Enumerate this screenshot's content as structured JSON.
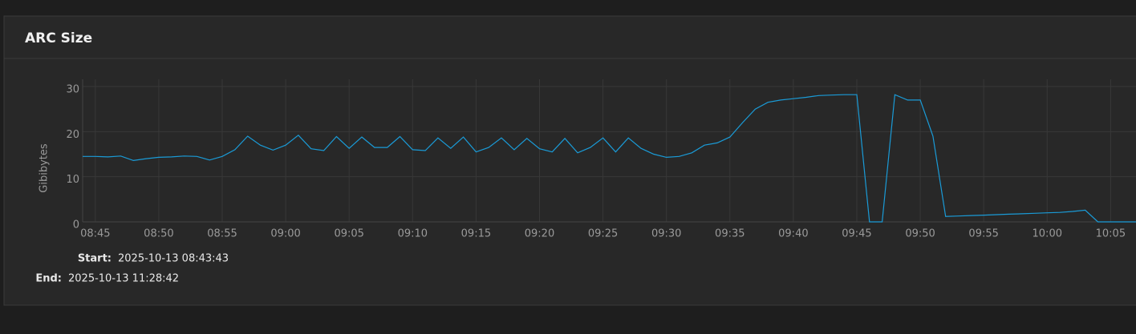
{
  "panel": {
    "title": "ARC Size",
    "start_label": "Start:",
    "start": "2025-10-13 08:43:43",
    "end_label": "End:",
    "end": "2025-10-13 11:28:42"
  },
  "chart_data": {
    "type": "line",
    "y_label": "Gibibytes",
    "color": "#1a9bd7",
    "grid": true,
    "x": [
      "08:44",
      "08:45",
      "08:46",
      "08:47",
      "08:48",
      "08:49",
      "08:50",
      "08:51",
      "08:52",
      "08:53",
      "08:54",
      "08:55",
      "08:56",
      "08:57",
      "08:58",
      "08:59",
      "09:00",
      "09:01",
      "09:02",
      "09:03",
      "09:04",
      "09:05",
      "09:06",
      "09:07",
      "09:08",
      "09:09",
      "09:10",
      "09:11",
      "09:12",
      "09:13",
      "09:14",
      "09:15",
      "09:16",
      "09:17",
      "09:18",
      "09:19",
      "09:20",
      "09:21",
      "09:22",
      "09:23",
      "09:24",
      "09:25",
      "09:26",
      "09:27",
      "09:28",
      "09:29",
      "09:30",
      "09:31",
      "09:32",
      "09:33",
      "09:34",
      "09:35",
      "09:36",
      "09:37",
      "09:38",
      "09:39",
      "09:40",
      "09:41",
      "09:42",
      "09:43",
      "09:44",
      "09:45",
      "09:46",
      "09:47",
      "09:48",
      "09:49",
      "09:50",
      "09:51",
      "09:52",
      "09:53",
      "09:54",
      "09:55",
      "09:56",
      "09:57",
      "09:58",
      "09:59",
      "10:00",
      "10:01",
      "10:02",
      "10:03",
      "10:04",
      "10:05",
      "10:06",
      "10:07"
    ],
    "values": [
      14.5,
      14.5,
      14.4,
      14.6,
      13.6,
      14.0,
      14.3,
      14.4,
      14.6,
      14.5,
      13.7,
      14.5,
      16.0,
      19.0,
      17.0,
      15.9,
      17.0,
      19.2,
      16.2,
      15.8,
      18.9,
      16.3,
      18.8,
      16.5,
      16.5,
      18.9,
      16.0,
      15.8,
      18.6,
      16.3,
      18.8,
      15.5,
      16.5,
      18.6,
      16.0,
      18.5,
      16.2,
      15.5,
      18.5,
      15.3,
      16.5,
      18.6,
      15.5,
      18.6,
      16.3,
      15.0,
      14.3,
      14.5,
      15.3,
      17.0,
      17.5,
      18.8,
      22.0,
      25.0,
      26.5,
      27.0,
      27.3,
      27.6,
      28.0,
      28.1,
      28.2,
      28.2,
      0,
      0,
      28.2,
      27.0,
      27.0,
      19.0,
      1.2,
      1.3,
      1.4,
      1.5,
      1.6,
      1.7,
      1.8,
      1.9,
      2.0,
      2.1,
      2.3,
      2.6,
      0,
      0,
      0,
      0
    ],
    "xlim": [
      "08:44",
      "10:07"
    ],
    "xticks": [
      "08:45",
      "08:50",
      "08:55",
      "09:00",
      "09:05",
      "09:10",
      "09:15",
      "09:20",
      "09:25",
      "09:30",
      "09:35",
      "09:40",
      "09:45",
      "09:50",
      "09:55",
      "10:00",
      "10:05"
    ],
    "ylim": [
      0,
      31.6
    ],
    "yticks": [
      0,
      10,
      20,
      30
    ]
  }
}
